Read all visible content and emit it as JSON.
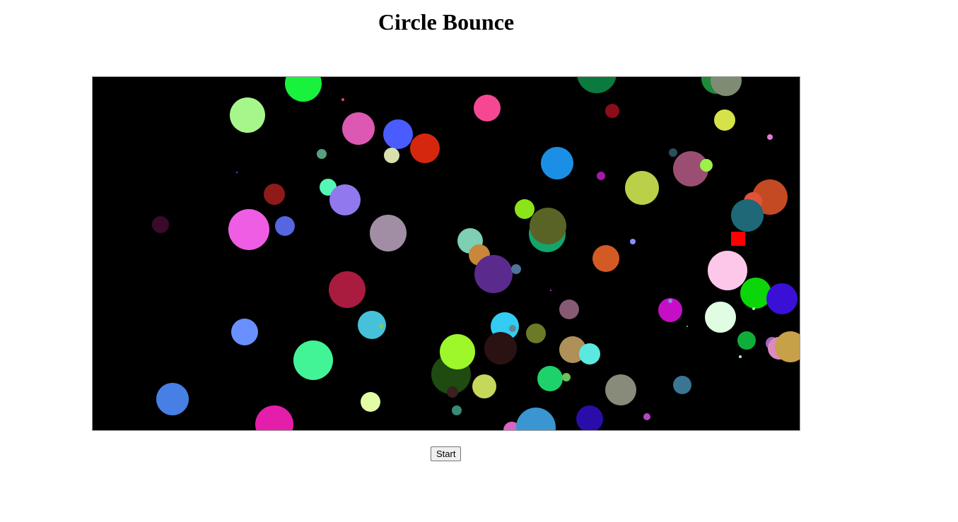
{
  "page": {
    "title": "Circle Bounce"
  },
  "controls": {
    "start_label": "Start"
  },
  "game": {
    "background": "#000000",
    "player_color": "#ff0000"
  }
}
